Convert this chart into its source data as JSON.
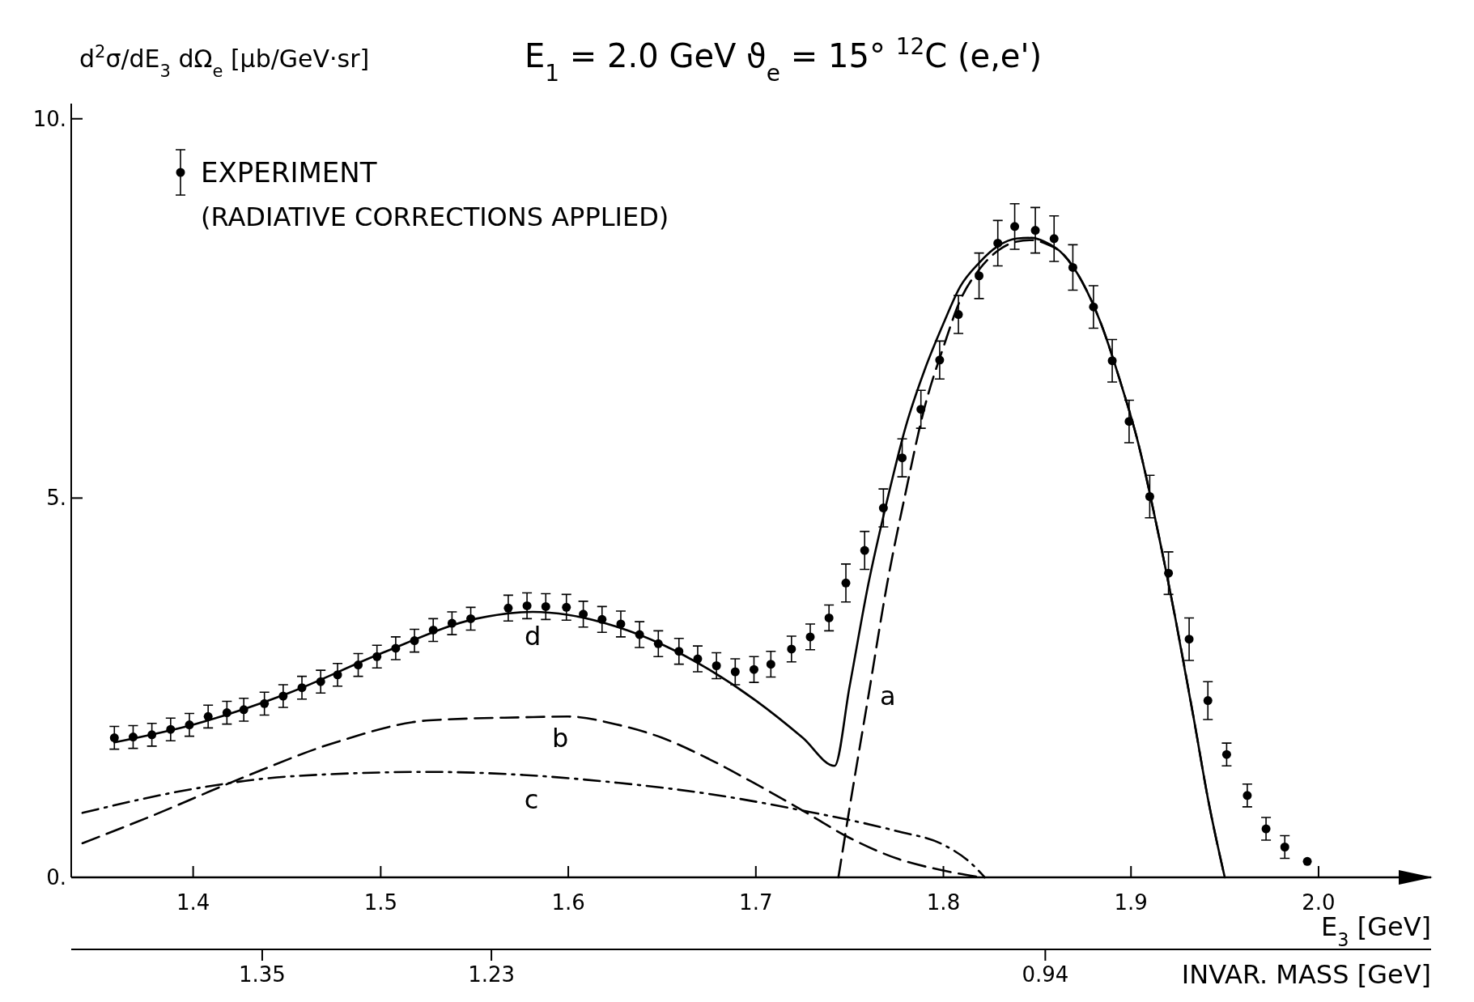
{
  "chart_data": {
    "type": "scatter",
    "title": "E$_{1}$ = 2.0 GeV   ϑ$_{e}$ = 15°   $^{12}$C (e,e')",
    "ylabel": "d$^{2}$σ/dE$_{3}$ dΩ$_{e}$ [μb/GeV·sr]",
    "xlabel": "E$_{3}$ [GeV]",
    "x2label": "INVAR. MASS  [GeV]",
    "xlim": [
      1.335,
      2.06
    ],
    "xticks": [
      1.4,
      1.5,
      1.6,
      1.7,
      1.8,
      1.9,
      {
        "value": 2,
        "label": "2.0"
      }
    ],
    "x2lim": [
      1.45,
      0.738
    ],
    "x2ticks": [
      1.35,
      1.23,
      0.94
    ],
    "ylim": [
      0,
      10.2
    ],
    "yticks": [
      {
        "value": 0,
        "label": "0."
      },
      {
        "value": 5,
        "label": "5."
      },
      {
        "value": 10,
        "label": "10."
      }
    ],
    "grid": false,
    "legend": "top left",
    "series": [
      {
        "name": "EXPERIMENT",
        "color": "#000000",
        "marker": "circle",
        "x": [
          1.358,
          1.368,
          1.378,
          1.388,
          1.398,
          1.408,
          1.418,
          1.427,
          1.438,
          1.448,
          1.458,
          1.468,
          1.477,
          1.488,
          1.498,
          1.508,
          1.518,
          1.528,
          1.538,
          1.548,
          1.568,
          1.578,
          1.588,
          1.599,
          1.608,
          1.618,
          1.628,
          1.638,
          1.648,
          1.659,
          1.669,
          1.679,
          1.689,
          1.699,
          1.708,
          1.719,
          1.729,
          1.739,
          1.748,
          1.758,
          1.768,
          1.778,
          1.788,
          1.798,
          1.808,
          1.819,
          1.829,
          1.838,
          1.849,
          1.859,
          1.869,
          1.88,
          1.89,
          1.899,
          1.91,
          1.92,
          1.931,
          1.941,
          1.951,
          1.962,
          1.972,
          1.982,
          1.994
        ],
        "values": [
          1.84,
          1.85,
          1.88,
          1.95,
          2.01,
          2.12,
          2.17,
          2.21,
          2.29,
          2.39,
          2.5,
          2.58,
          2.67,
          2.8,
          2.91,
          3.02,
          3.12,
          3.26,
          3.35,
          3.41,
          3.55,
          3.58,
          3.57,
          3.56,
          3.47,
          3.4,
          3.34,
          3.2,
          3.08,
          2.98,
          2.88,
          2.79,
          2.71,
          2.74,
          2.81,
          3.01,
          3.17,
          3.42,
          3.88,
          4.31,
          4.87,
          5.53,
          6.17,
          6.82,
          7.42,
          7.93,
          8.36,
          8.58,
          8.53,
          8.42,
          8.04,
          7.52,
          6.81,
          6.01,
          5.02,
          4.01,
          3.14,
          2.33,
          1.62,
          1.08,
          0.64,
          0.4,
          0.21
        ],
        "errors": [
          0.15,
          0.15,
          0.15,
          0.15,
          0.15,
          0.15,
          0.15,
          0.15,
          0.15,
          0.15,
          0.15,
          0.15,
          0.15,
          0.15,
          0.15,
          0.15,
          0.15,
          0.15,
          0.15,
          0.15,
          0.17,
          0.17,
          0.17,
          0.17,
          0.17,
          0.17,
          0.17,
          0.17,
          0.17,
          0.17,
          0.17,
          0.17,
          0.17,
          0.17,
          0.17,
          0.17,
          0.17,
          0.17,
          0.25,
          0.25,
          0.25,
          0.25,
          0.25,
          0.25,
          0.25,
          0.3,
          0.3,
          0.3,
          0.3,
          0.3,
          0.3,
          0.28,
          0.28,
          0.28,
          0.28,
          0.28,
          0.28,
          0.25,
          0.15,
          0.15,
          0.15,
          0.15,
          null
        ]
      },
      {
        "name": "d",
        "type": "line",
        "color": "#000000",
        "line_style": "solid",
        "marker": "none",
        "x": [
          1.358,
          1.401,
          1.451,
          1.501,
          1.551,
          1.581,
          1.6,
          1.625,
          1.65,
          1.675,
          1.7,
          1.725,
          1.742,
          1.75,
          1.76,
          1.77,
          1.78,
          1.79,
          1.8,
          1.809,
          1.819,
          1.829,
          1.839,
          1.847,
          1.854,
          1.864,
          1.874,
          1.884,
          1.894,
          1.904,
          1.914,
          1.924,
          1.934,
          1.941,
          1.95
        ],
        "values": [
          1.78,
          2.02,
          2.43,
          2.96,
          3.41,
          3.5,
          3.46,
          3.31,
          3.07,
          2.74,
          2.33,
          1.84,
          1.47,
          2.52,
          3.87,
          4.97,
          5.95,
          6.69,
          7.3,
          7.79,
          8.1,
          8.32,
          8.42,
          8.43,
          8.38,
          8.21,
          7.85,
          7.3,
          6.56,
          5.71,
          4.6,
          3.37,
          2.02,
          1.04,
          0
        ]
      },
      {
        "name": "a",
        "type": "line",
        "color": "#000000",
        "line_style": "dashed",
        "marker": "none",
        "x": [
          1.744,
          1.75,
          1.76,
          1.77,
          1.78,
          1.79,
          1.8,
          1.809,
          1.819,
          1.829,
          1.839,
          1.847,
          1.854,
          1.864,
          1.874,
          1.884,
          1.894,
          1.904,
          1.914,
          1.924,
          1.934,
          1.941,
          1.95
        ],
        "values": [
          0,
          0.92,
          2.39,
          3.87,
          5.09,
          6.2,
          6.99,
          7.61,
          8.01,
          8.26,
          8.38,
          8.4,
          8.36,
          8.21,
          7.85,
          7.3,
          6.56,
          5.71,
          4.6,
          3.37,
          2.02,
          1.04,
          0
        ]
      },
      {
        "name": "b",
        "type": "line",
        "color": "#000000",
        "line_style": "dashed",
        "marker": "none",
        "x": [
          1.341,
          1.377,
          1.426,
          1.476,
          1.526,
          1.576,
          1.6,
          1.625,
          1.65,
          1.675,
          1.7,
          1.725,
          1.75,
          1.775,
          1.8,
          1.82
        ],
        "values": [
          0.45,
          0.8,
          1.31,
          1.78,
          2.07,
          2.11,
          2.12,
          2.02,
          1.84,
          1.56,
          1.23,
          0.88,
          0.52,
          0.25,
          0.09,
          0
        ]
      },
      {
        "name": "c",
        "type": "line",
        "color": "#000000",
        "line_style": "dashdot",
        "marker": "none",
        "x": [
          1.341,
          1.401,
          1.451,
          1.526,
          1.576,
          1.625,
          1.675,
          1.725,
          1.775,
          1.8,
          1.815,
          1.822
        ],
        "values": [
          0.85,
          1.17,
          1.33,
          1.39,
          1.35,
          1.25,
          1.1,
          0.88,
          0.61,
          0.43,
          0.18,
          0
        ]
      }
    ],
    "annotations": [
      "(RADIATIVE CORRECTIONS APPLIED)"
    ]
  }
}
